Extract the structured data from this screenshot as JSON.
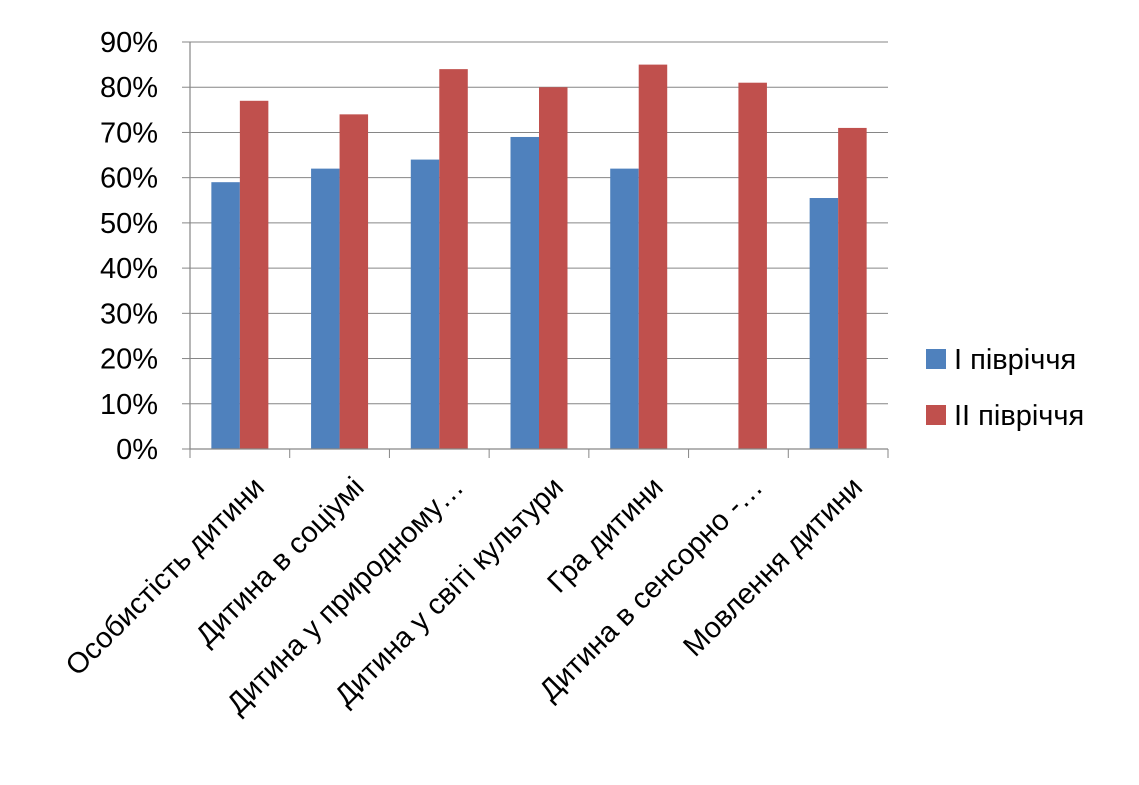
{
  "chart_data": {
    "type": "bar",
    "categories": [
      "Особистість дитини",
      "Дитина в соціумі",
      "Дитина у природному…",
      "Дитина у світі культури",
      "Гра дитини",
      "Дитина в сенсорно -…",
      "Мовлення дитини"
    ],
    "series": [
      {
        "name": "І півріччя",
        "color": "#4F81BD",
        "values": [
          59,
          62,
          64,
          69,
          62,
          null,
          55.5
        ]
      },
      {
        "name": "ІІ півріччя",
        "color": "#C0504D",
        "values": [
          77,
          74,
          84,
          80,
          85,
          81,
          71
        ]
      }
    ],
    "yticks": [
      "0%",
      "10%",
      "20%",
      "30%",
      "40%",
      "50%",
      "60%",
      "70%",
      "80%",
      "90%"
    ],
    "ylim": [
      0,
      90
    ],
    "unit": "%",
    "grid": true,
    "legend": "right"
  }
}
